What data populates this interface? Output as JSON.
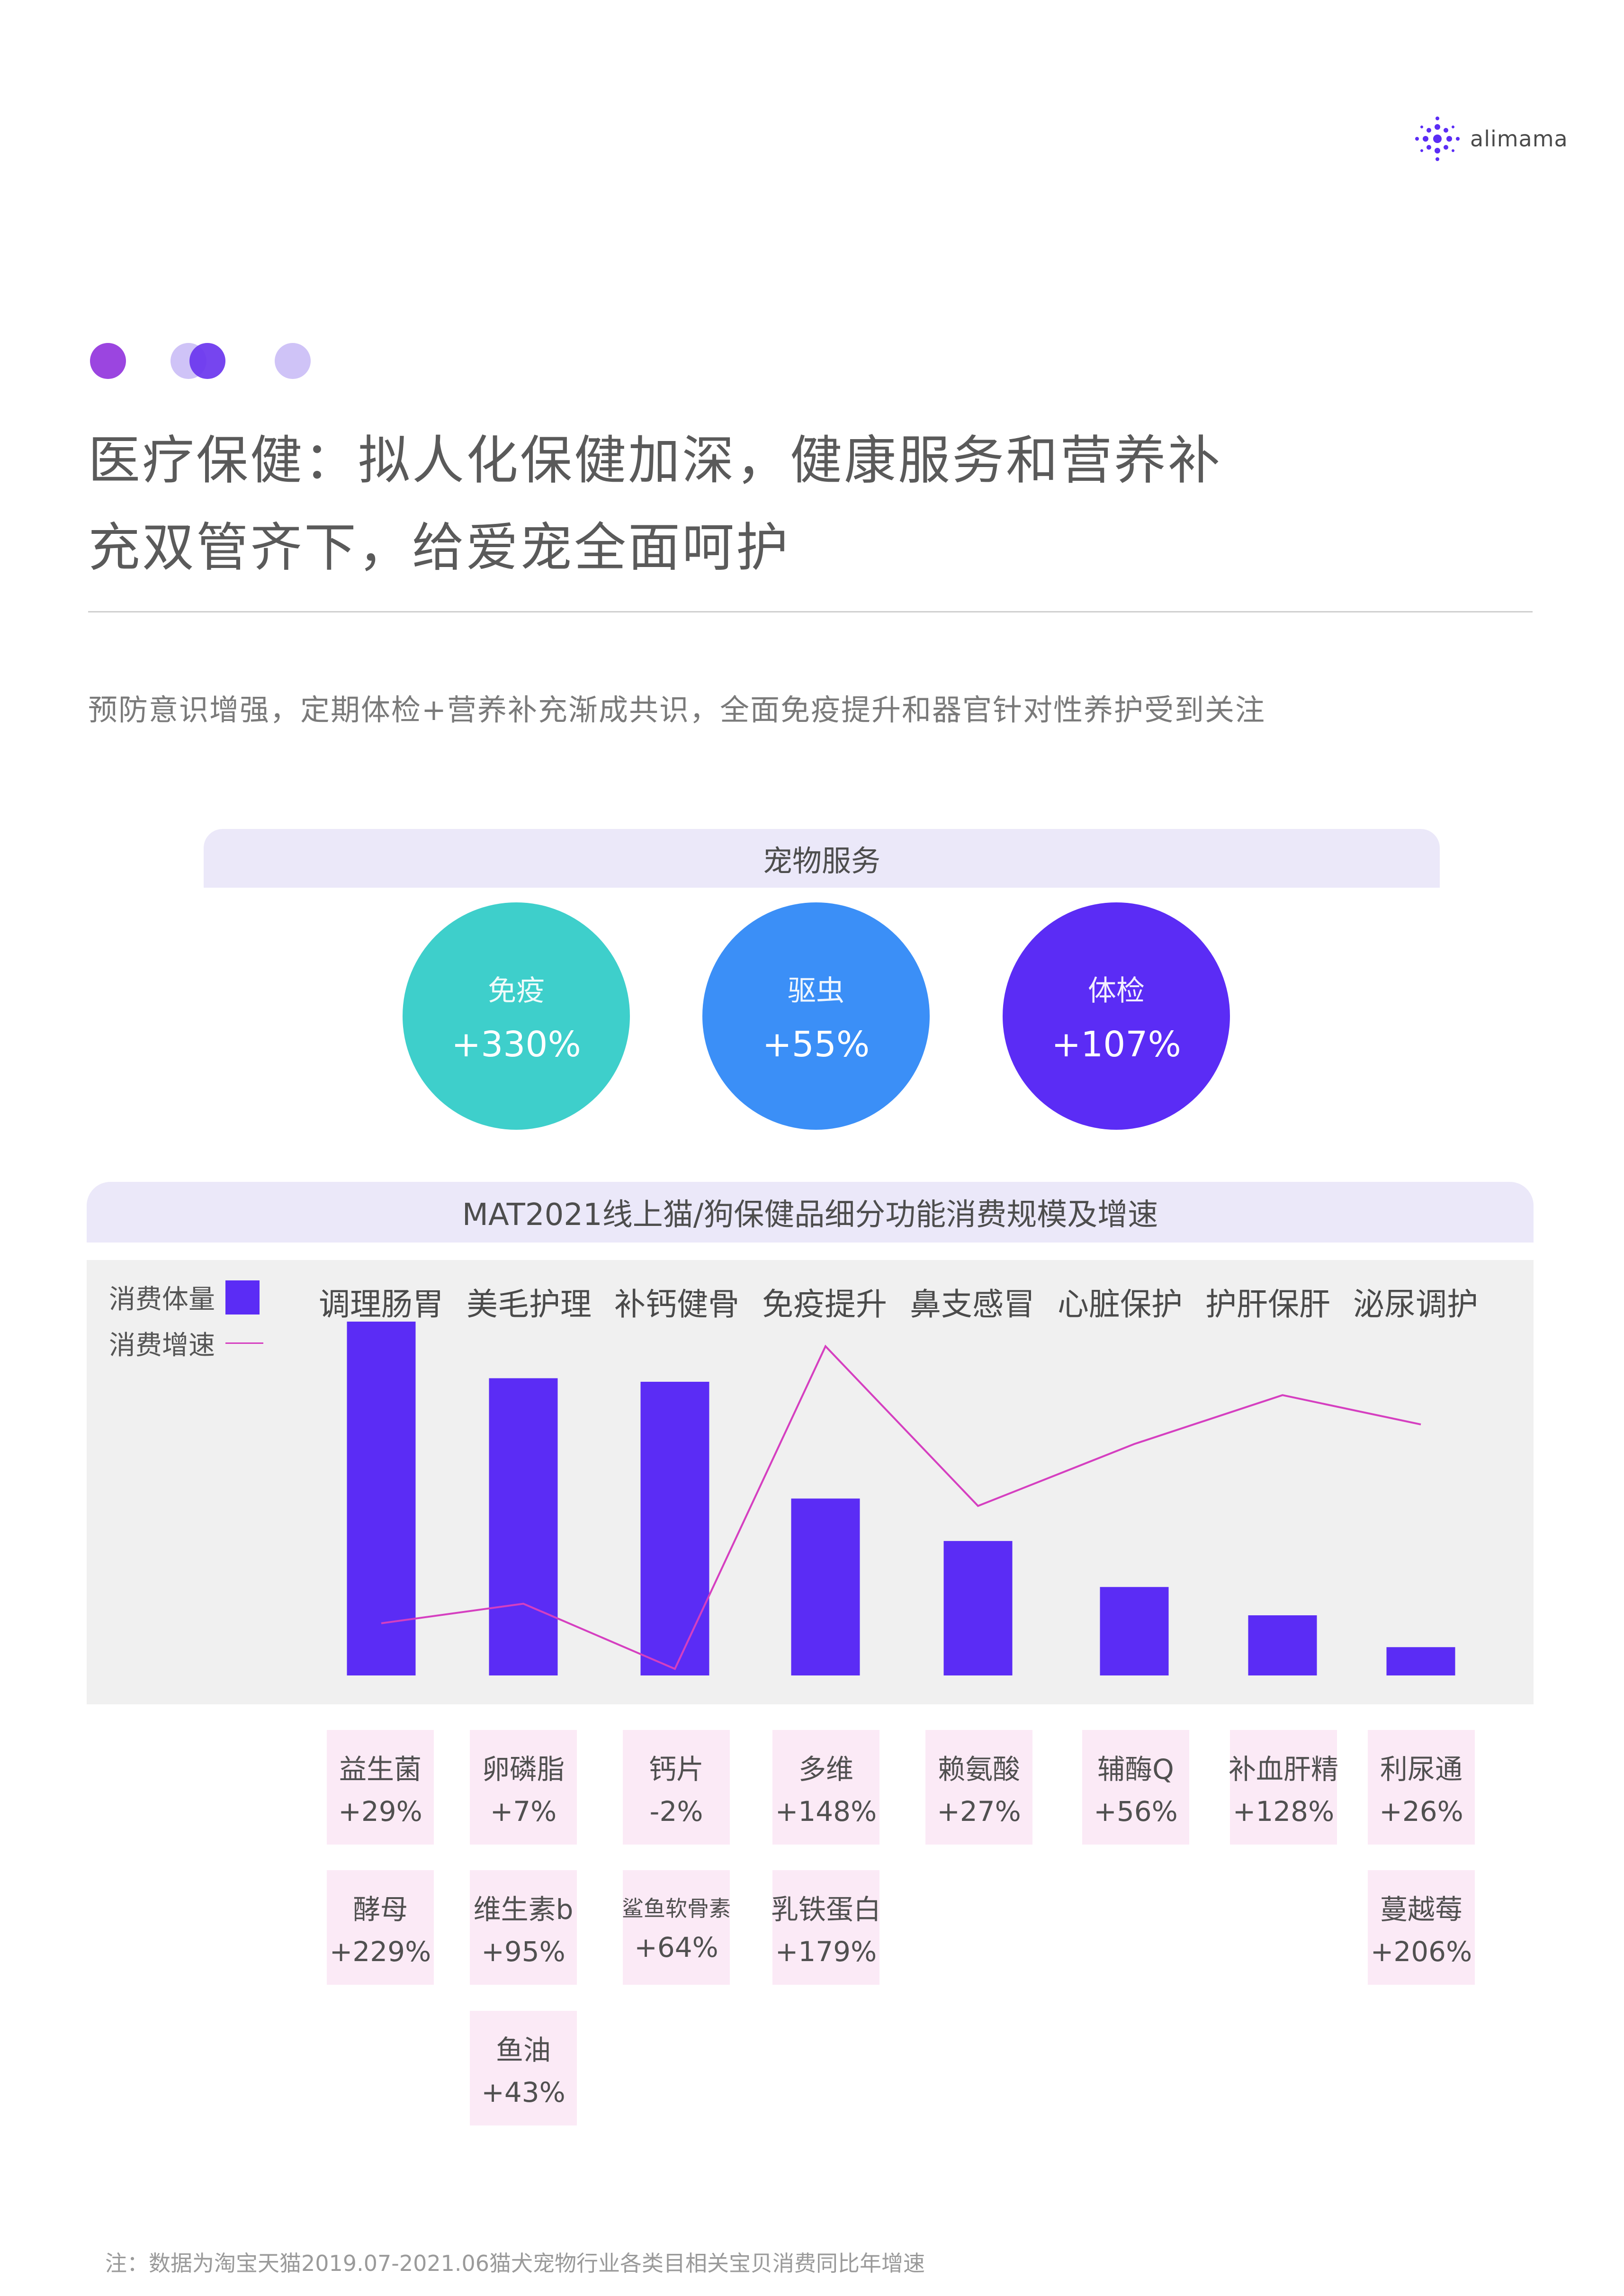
{
  "brand": {
    "logo_text": "alimama"
  },
  "title": {
    "line1": "医疗保健：拟人化保健加深，健康服务和营养补",
    "line2": "充双管齐下，给爱宠全面呵护"
  },
  "subtitle": "预防意识增强，定期体检+营养补充渐成共识，全面免疫提升和器官针对性养护受到关注",
  "pet_service": {
    "header": "宠物服务",
    "items": [
      {
        "label": "免疫",
        "value": "+330%",
        "color": "#3ecfcb"
      },
      {
        "label": "驱虫",
        "value": "+55%",
        "color": "#3b8ff7"
      },
      {
        "label": "体检",
        "value": "+107%",
        "color": "#5b2cf5"
      }
    ]
  },
  "chart": {
    "header": "MAT2021线上猫/狗保健品细分功能消费规模及增速",
    "legend": {
      "volume": "消费体量",
      "growth": "消费增速"
    },
    "bar_color": "#5b2cf5",
    "line_color": "#d53fc0"
  },
  "chart_data": {
    "type": "bar",
    "title": "MAT2021线上猫/狗保健品细分功能消费规模及增速",
    "categories": [
      "调理肠胃",
      "美毛护理",
      "补钙健骨",
      "免疫提升",
      "鼻支感冒",
      "心脏保护",
      "护肝保肝",
      "泌尿调护"
    ],
    "series": [
      {
        "name": "消费体量",
        "type": "bar",
        "values": [
          100,
          84,
          83,
          50,
          38,
          25,
          17,
          8
        ]
      },
      {
        "name": "消费增速",
        "type": "line",
        "values": [
          15,
          21,
          1,
          100,
          51,
          70,
          85,
          76
        ]
      }
    ],
    "ylim": [
      0,
      100
    ],
    "grid": false,
    "legend_position": "top-left"
  },
  "sub_items": [
    [
      {
        "name": "益生菌",
        "value": "+29%"
      },
      {
        "name": "酵母",
        "value": "+229%"
      }
    ],
    [
      {
        "name": "卵磷脂",
        "value": "+7%"
      },
      {
        "name": "维生素b",
        "value": "+95%"
      },
      {
        "name": "鱼油",
        "value": "+43%"
      }
    ],
    [
      {
        "name": "钙片",
        "value": "-2%"
      },
      {
        "name": "鲨鱼软骨素",
        "value": "+64%"
      }
    ],
    [
      {
        "name": "多维",
        "value": "+148%"
      },
      {
        "name": "乳铁蛋白",
        "value": "+179%"
      }
    ],
    [
      {
        "name": "赖氨酸",
        "value": "+27%"
      }
    ],
    [
      {
        "name": "辅酶Q",
        "value": "+56%"
      }
    ],
    [
      {
        "name": "补血肝精",
        "value": "+128%"
      }
    ],
    [
      {
        "name": "利尿通",
        "value": "+26%"
      },
      {
        "name": "蔓越莓",
        "value": "+206%"
      }
    ]
  ],
  "footnote": "注：数据为淘宝天猫2019.07-2021.06猫犬宠物行业各类目相关宝贝消费同比年增速"
}
